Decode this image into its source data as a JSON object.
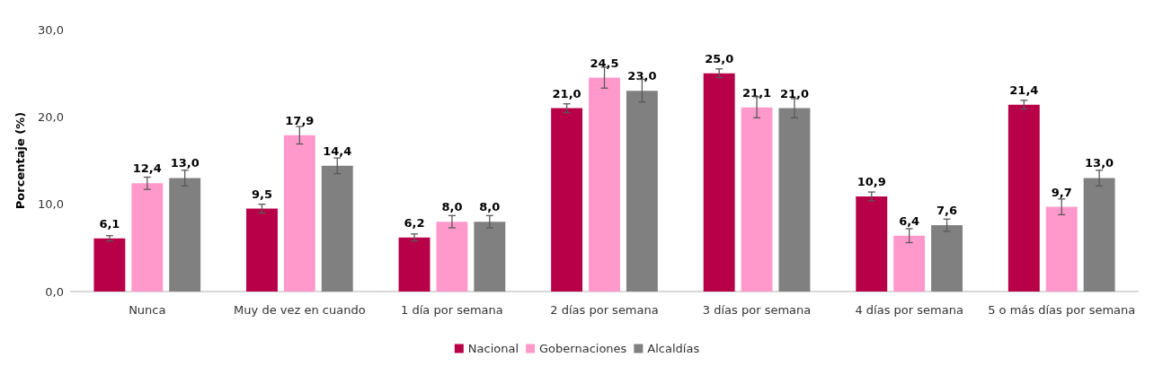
{
  "chart_data": {
    "type": "bar",
    "ylabel": "Porcentaje (%)",
    "categories": [
      "Nunca",
      "Muy de vez en cuando",
      "1 día por semana",
      "2 días por semana",
      "3 días por semana",
      "4 días por semana",
      "5 o más días por semana"
    ],
    "series": [
      {
        "name": "Nacional",
        "color": "#b70048",
        "values": [
          6.1,
          9.5,
          6.2,
          21.0,
          25.0,
          10.9,
          21.4
        ],
        "value_labels": [
          "6,1",
          "9,5",
          "6,2",
          "21,0",
          "25,0",
          "10,9",
          "21,4"
        ],
        "errors": [
          0.3,
          0.5,
          0.4,
          0.5,
          0.5,
          0.5,
          0.5
        ]
      },
      {
        "name": "Gobernaciones",
        "color": "#ff99cc",
        "values": [
          12.4,
          17.9,
          8.0,
          24.5,
          21.1,
          6.4,
          9.7
        ],
        "value_labels": [
          "12,4",
          "17,9",
          "8,0",
          "24,5",
          "21,1",
          "6,4",
          "9,7"
        ],
        "errors": [
          0.7,
          1.0,
          0.7,
          1.2,
          1.2,
          0.8,
          0.9
        ]
      },
      {
        "name": "Alcaldías",
        "color": "#808080",
        "values": [
          13.0,
          14.4,
          8.0,
          23.0,
          21.0,
          7.6,
          13.0
        ],
        "value_labels": [
          "13,0",
          "14,4",
          "8,0",
          "23,0",
          "21,0",
          "7,6",
          "13,0"
        ],
        "errors": [
          0.9,
          0.9,
          0.7,
          1.3,
          1.1,
          0.7,
          0.9
        ]
      }
    ],
    "ylim": [
      0,
      30
    ],
    "yticks": [
      {
        "value": 0,
        "label": "0,0"
      },
      {
        "value": 10,
        "label": "10,0"
      },
      {
        "value": 20,
        "label": "20,0"
      },
      {
        "value": 30,
        "label": "30,0"
      }
    ],
    "grid": false,
    "legend": "bottom"
  }
}
